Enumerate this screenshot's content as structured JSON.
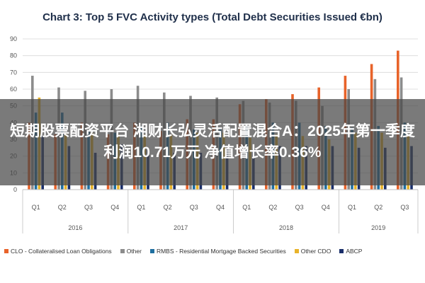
{
  "chart_data": {
    "type": "bar",
    "title": "Chart 3: Top 5 FVC Activity types (Total Debt Securities Issued €bn)",
    "ylim": [
      0,
      90
    ],
    "yticks": [
      0,
      10,
      20,
      30,
      40,
      50,
      60,
      70,
      80,
      90
    ],
    "categories": [
      "Q1",
      "Q2",
      "Q3",
      "Q4",
      "Q1",
      "Q2",
      "Q3",
      "Q4",
      "Q1",
      "Q2",
      "Q3",
      "Q4",
      "Q1",
      "Q2",
      "Q3"
    ],
    "year_groups": [
      {
        "label": "2016",
        "count": 4
      },
      {
        "label": "2017",
        "count": 4
      },
      {
        "label": "2018",
        "count": 4
      },
      {
        "label": "2019",
        "count": 3
      }
    ],
    "series": [
      {
        "name": "CLO - Collateralised Loan Obligations",
        "color": "#e8632a",
        "values": [
          40,
          33,
          40,
          33,
          40,
          35,
          42,
          42,
          51,
          54,
          57,
          61,
          68,
          75,
          83
        ]
      },
      {
        "name": "Other",
        "color": "#8c8c8c",
        "values": [
          68,
          61,
          59,
          60,
          62,
          58,
          56,
          55,
          53,
          52,
          53,
          50,
          60,
          66,
          67
        ]
      },
      {
        "name": "RMBS - Residential Mortgage Backed Securities",
        "color": "#1f6fa0",
        "values": [
          46,
          46,
          35,
          34,
          38,
          40,
          36,
          36,
          38,
          40,
          40,
          38,
          37,
          38,
          40
        ]
      },
      {
        "name": "Other CDO",
        "color": "#e8b32a",
        "values": [
          55,
          34,
          34,
          33,
          33,
          33,
          34,
          34,
          31,
          33,
          32,
          30,
          34,
          34,
          33
        ]
      },
      {
        "name": "ABCP",
        "color": "#1a2f6a",
        "values": [
          32,
          26,
          22,
          27,
          24,
          22,
          22,
          24,
          24,
          26,
          26,
          26,
          25,
          25,
          26
        ]
      }
    ],
    "grid": true,
    "legend_position": "bottom"
  },
  "overlay": {
    "banner_text": "短期股票配资平台 湘财长弘灵活配置混合A：2025年第一季度利润10.71万元 净值增长率0.36%"
  }
}
